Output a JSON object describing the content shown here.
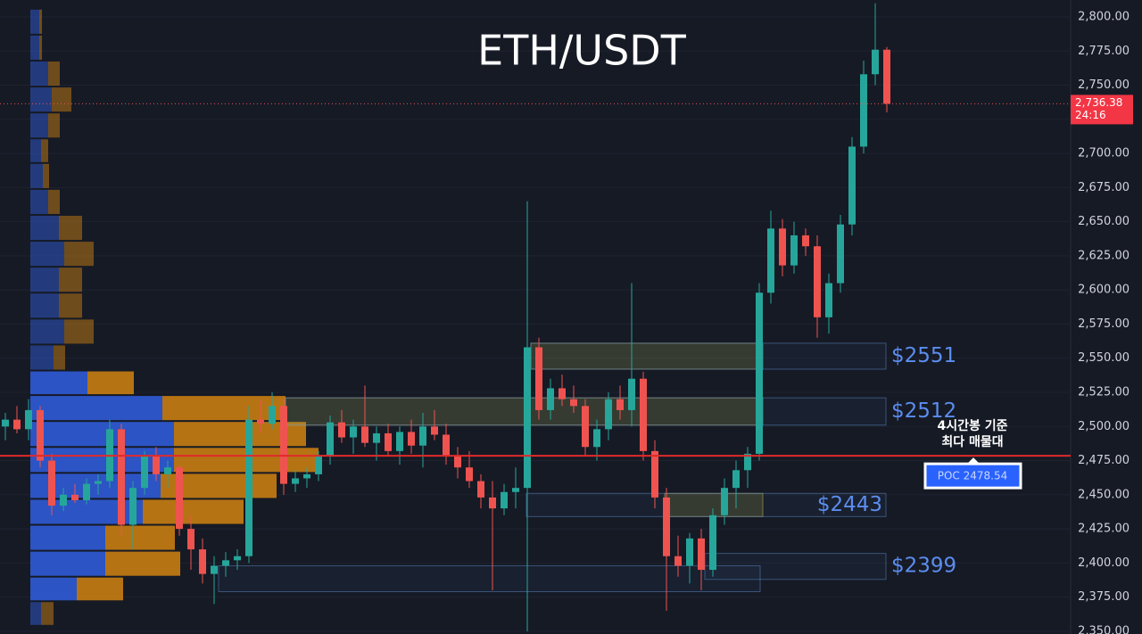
{
  "chart_data": {
    "type": "candlestick",
    "title": "ETH/USDT",
    "up_color": "#26a69a",
    "down_color": "#ef5350",
    "ylim": [
      2348,
      2812.4
    ],
    "yticks": [
      {
        "value": 2800,
        "label": "2,800.00"
      },
      {
        "value": 2775,
        "label": "2,775.00"
      },
      {
        "value": 2750,
        "label": "2,750.00"
      },
      {
        "value": 2725,
        "label": "2,725.00"
      },
      {
        "value": 2700,
        "label": "2,700.00"
      },
      {
        "value": 2675,
        "label": "2,675.00"
      },
      {
        "value": 2650,
        "label": "2,650.00"
      },
      {
        "value": 2625,
        "label": "2,625.00"
      },
      {
        "value": 2600,
        "label": "2,600.00"
      },
      {
        "value": 2575,
        "label": "2,575.00"
      },
      {
        "value": 2550,
        "label": "2,550.00"
      },
      {
        "value": 2525,
        "label": "2,525.00"
      },
      {
        "value": 2500,
        "label": "2,500.00"
      },
      {
        "value": 2475,
        "label": "2,475.00"
      },
      {
        "value": 2450,
        "label": "2,450.00"
      },
      {
        "value": 2425,
        "label": "2,425.00"
      },
      {
        "value": 2400,
        "label": "2,400.00"
      },
      {
        "value": 2375,
        "label": "2,375.00"
      },
      {
        "value": 2350,
        "label": "2,350.00"
      }
    ],
    "grid": true,
    "ohlc": [
      [
        2500,
        2510,
        2490,
        2505
      ],
      [
        2505,
        2515,
        2495,
        2498
      ],
      [
        2498,
        2520,
        2490,
        2512
      ],
      [
        2512,
        2515,
        2470,
        2475
      ],
      [
        2475,
        2480,
        2435,
        2442
      ],
      [
        2442,
        2455,
        2438,
        2450
      ],
      [
        2450,
        2458,
        2444,
        2446
      ],
      [
        2446,
        2462,
        2443,
        2458
      ],
      [
        2458,
        2465,
        2450,
        2460
      ],
      [
        2460,
        2505,
        2455,
        2498
      ],
      [
        2498,
        2502,
        2420,
        2428
      ],
      [
        2428,
        2460,
        2410,
        2455
      ],
      [
        2455,
        2482,
        2450,
        2478
      ],
      [
        2478,
        2485,
        2460,
        2465
      ],
      [
        2465,
        2475,
        2455,
        2470
      ],
      [
        2470,
        2472,
        2420,
        2425
      ],
      [
        2425,
        2435,
        2395,
        2410
      ],
      [
        2410,
        2418,
        2385,
        2392
      ],
      [
        2392,
        2405,
        2370,
        2398
      ],
      [
        2398,
        2408,
        2390,
        2402
      ],
      [
        2402,
        2410,
        2395,
        2405
      ],
      [
        2405,
        2515,
        2400,
        2505
      ],
      [
        2505,
        2520,
        2495,
        2502
      ],
      [
        2502,
        2525,
        2498,
        2515
      ],
      [
        2515,
        2520,
        2450,
        2458
      ],
      [
        2458,
        2468,
        2452,
        2462
      ],
      [
        2462,
        2470,
        2455,
        2465
      ],
      [
        2465,
        2482,
        2460,
        2478
      ],
      [
        2478,
        2508,
        2472,
        2503
      ],
      [
        2503,
        2512,
        2488,
        2492
      ],
      [
        2492,
        2505,
        2480,
        2500
      ],
      [
        2500,
        2530,
        2485,
        2488
      ],
      [
        2488,
        2500,
        2475,
        2495
      ],
      [
        2495,
        2502,
        2478,
        2482
      ],
      [
        2482,
        2500,
        2472,
        2496
      ],
      [
        2496,
        2505,
        2480,
        2486
      ],
      [
        2486,
        2510,
        2470,
        2500
      ],
      [
        2500,
        2512,
        2490,
        2494
      ],
      [
        2494,
        2502,
        2472,
        2478
      ],
      [
        2478,
        2485,
        2462,
        2470
      ],
      [
        2470,
        2482,
        2455,
        2460
      ],
      [
        2460,
        2465,
        2440,
        2448
      ],
      [
        2448,
        2460,
        2380,
        2440
      ],
      [
        2440,
        2458,
        2435,
        2452
      ],
      [
        2452,
        2470,
        2440,
        2455
      ],
      [
        2455,
        2665,
        2350,
        2558
      ],
      [
        2558,
        2565,
        2505,
        2512
      ],
      [
        2512,
        2535,
        2505,
        2528
      ],
      [
        2528,
        2538,
        2515,
        2520
      ],
      [
        2520,
        2530,
        2510,
        2515
      ],
      [
        2515,
        2520,
        2478,
        2485
      ],
      [
        2485,
        2505,
        2475,
        2498
      ],
      [
        2498,
        2525,
        2490,
        2520
      ],
      [
        2520,
        2530,
        2505,
        2512
      ],
      [
        2512,
        2605,
        2500,
        2535
      ],
      [
        2535,
        2540,
        2475,
        2482
      ],
      [
        2482,
        2490,
        2440,
        2448
      ],
      [
        2448,
        2455,
        2365,
        2405
      ],
      [
        2405,
        2420,
        2390,
        2398
      ],
      [
        2398,
        2422,
        2385,
        2418
      ],
      [
        2418,
        2425,
        2380,
        2395
      ],
      [
        2395,
        2440,
        2390,
        2435
      ],
      [
        2435,
        2462,
        2428,
        2455
      ],
      [
        2455,
        2475,
        2440,
        2468
      ],
      [
        2468,
        2485,
        2455,
        2480
      ],
      [
        2480,
        2605,
        2475,
        2598
      ],
      [
        2598,
        2658,
        2590,
        2645
      ],
      [
        2645,
        2652,
        2610,
        2618
      ],
      [
        2618,
        2650,
        2612,
        2640
      ],
      [
        2640,
        2645,
        2625,
        2632
      ],
      [
        2632,
        2640,
        2565,
        2580
      ],
      [
        2580,
        2612,
        2568,
        2605
      ],
      [
        2605,
        2655,
        2598,
        2648
      ],
      [
        2648,
        2712,
        2640,
        2705
      ],
      [
        2705,
        2768,
        2700,
        2758
      ],
      [
        2758,
        2810,
        2750,
        2776
      ],
      [
        2776,
        2778,
        2730,
        2736.38
      ]
    ],
    "last_price": {
      "value": 2736.38,
      "label": "2,736.38"
    },
    "countdown": "24:16",
    "volume_profile": {
      "levels": [
        2806,
        2787,
        2768,
        2749,
        2730,
        2711,
        2693,
        2674,
        2655,
        2636,
        2617,
        2598,
        2579,
        2560,
        2541,
        2523,
        2504,
        2485,
        2466,
        2447,
        2428,
        2409,
        2390,
        2372
      ],
      "buy": [
        10,
        10,
        20,
        24,
        20,
        12,
        14,
        20,
        32,
        38,
        32,
        32,
        38,
        26,
        64,
        148,
        161,
        161,
        146,
        126,
        84,
        84,
        52,
        12
      ],
      "sell": [
        3,
        3,
        13,
        22,
        13,
        8,
        7,
        13,
        26,
        33,
        26,
        26,
        33,
        13,
        52,
        138,
        148,
        162,
        130,
        113,
        78,
        84,
        52,
        14
      ]
    },
    "zones": [
      {
        "low": 2542,
        "high": 2561,
        "label": "$2551"
      },
      {
        "low": 2501,
        "high": 2521,
        "label": "$2512"
      },
      {
        "low": 2434,
        "high": 2451,
        "label": "$2443"
      },
      {
        "low": 2388,
        "high": 2407,
        "label": "$2399"
      },
      {
        "low": 2379,
        "high": 2398
      }
    ],
    "poc": {
      "value": 2478.54,
      "label": "POC  2478.54"
    },
    "annotation": [
      "4시간봉 기준",
      "최다 매물대"
    ]
  }
}
